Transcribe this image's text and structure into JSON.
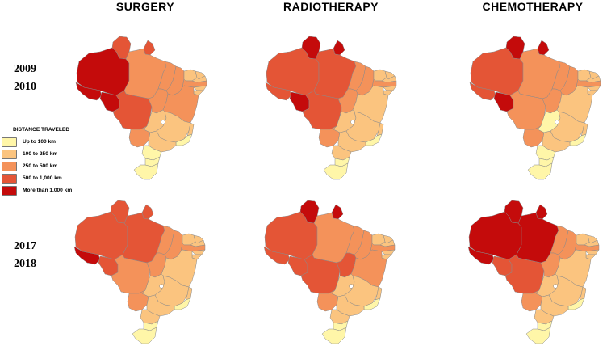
{
  "colors": {
    "up_to_100": "#FFF6A8",
    "100_to_250": "#FBC47F",
    "250_to_500": "#F4925A",
    "500_to_1000": "#E45536",
    "more_than_1000": "#C40B0B"
  },
  "columns": [
    "SURGERY",
    "RADIOTHERAPY",
    "CHEMOTHERAPY"
  ],
  "periods": [
    {
      "top": "2009",
      "bottom": "2010"
    },
    {
      "top": "2017",
      "bottom": "2018"
    }
  ],
  "legend": {
    "title": "DISTANCE TRAVELED",
    "items": [
      {
        "label": "Up to 100 km",
        "class": "up_to_100"
      },
      {
        "label": "100 to 250 km",
        "class": "100_to_250"
      },
      {
        "label": "250 to 500 km",
        "class": "250_to_500"
      },
      {
        "label": "500 to 1,000 km",
        "class": "500_to_1000"
      },
      {
        "label": "More than 1,000 km",
        "class": "more_than_1000"
      }
    ]
  },
  "maps": [
    {
      "period": "2009/2010",
      "treatment": "SURGERY",
      "states": {
        "AC": "more_than_1000",
        "AM": "more_than_1000",
        "RR": "500_to_1000",
        "AP": "500_to_1000",
        "PA": "250_to_500",
        "RO": "more_than_1000",
        "MT": "500_to_1000",
        "TO": "250_to_500",
        "MA": "250_to_500",
        "PI": "250_to_500",
        "CE": "100_to_250",
        "RN": "100_to_250",
        "PB": "100_to_250",
        "PE": "250_to_500",
        "AL": "100_to_250",
        "SE": "100_to_250",
        "BA": "250_to_500",
        "MS": "250_to_500",
        "GO": "100_to_250",
        "DF": "up_to_100",
        "MG": "100_to_250",
        "ES": "100_to_250",
        "RJ": "up_to_100",
        "SP": "100_to_250",
        "PR": "up_to_100",
        "SC": "up_to_100",
        "RS": "up_to_100"
      }
    },
    {
      "period": "2009/2010",
      "treatment": "RADIOTHERAPY",
      "states": {
        "AC": "500_to_1000",
        "AM": "500_to_1000",
        "RR": "more_than_1000",
        "AP": "more_than_1000",
        "PA": "500_to_1000",
        "RO": "more_than_1000",
        "MT": "500_to_1000",
        "TO": "250_to_500",
        "MA": "250_to_500",
        "PI": "250_to_500",
        "CE": "100_to_250",
        "RN": "100_to_250",
        "PB": "100_to_250",
        "PE": "250_to_500",
        "AL": "100_to_250",
        "SE": "100_to_250",
        "BA": "100_to_250",
        "MS": "250_to_500",
        "GO": "100_to_250",
        "DF": "up_to_100",
        "MG": "100_to_250",
        "ES": "100_to_250",
        "RJ": "up_to_100",
        "SP": "100_to_250",
        "PR": "100_to_250",
        "SC": "up_to_100",
        "RS": "up_to_100"
      }
    },
    {
      "period": "2009/2010",
      "treatment": "CHEMOTHERAPY",
      "states": {
        "AC": "500_to_1000",
        "AM": "500_to_1000",
        "RR": "more_than_1000",
        "AP": "more_than_1000",
        "PA": "250_to_500",
        "RO": "more_than_1000",
        "MT": "250_to_500",
        "TO": "250_to_500",
        "MA": "250_to_500",
        "PI": "250_to_500",
        "CE": "100_to_250",
        "RN": "100_to_250",
        "PB": "100_to_250",
        "PE": "250_to_500",
        "AL": "100_to_250",
        "SE": "100_to_250",
        "BA": "100_to_250",
        "MS": "250_to_500",
        "GO": "up_to_100",
        "DF": "up_to_100",
        "MG": "100_to_250",
        "ES": "100_to_250",
        "RJ": "up_to_100",
        "SP": "100_to_250",
        "PR": "up_to_100",
        "SC": "up_to_100",
        "RS": "up_to_100"
      }
    },
    {
      "period": "2017/2018",
      "treatment": "SURGERY",
      "states": {
        "AC": "more_than_1000",
        "AM": "500_to_1000",
        "RR": "500_to_1000",
        "AP": "500_to_1000",
        "PA": "500_to_1000",
        "RO": "500_to_1000",
        "MT": "250_to_500",
        "TO": "250_to_500",
        "MA": "250_to_500",
        "PI": "250_to_500",
        "CE": "100_to_250",
        "RN": "100_to_250",
        "PB": "100_to_250",
        "PE": "250_to_500",
        "AL": "100_to_250",
        "SE": "100_to_250",
        "BA": "100_to_250",
        "MS": "250_to_500",
        "GO": "100_to_250",
        "DF": "up_to_100",
        "MG": "100_to_250",
        "ES": "100_to_250",
        "RJ": "up_to_100",
        "SP": "100_to_250",
        "PR": "100_to_250",
        "SC": "up_to_100",
        "RS": "up_to_100"
      }
    },
    {
      "period": "2017/2018",
      "treatment": "RADIOTHERAPY",
      "states": {
        "AC": "500_to_1000",
        "AM": "500_to_1000",
        "RR": "more_than_1000",
        "AP": "more_than_1000",
        "PA": "250_to_500",
        "RO": "500_to_1000",
        "MT": "500_to_1000",
        "TO": "500_to_1000",
        "MA": "250_to_500",
        "PI": "250_to_500",
        "CE": "100_to_250",
        "RN": "100_to_250",
        "PB": "100_to_250",
        "PE": "250_to_500",
        "AL": "100_to_250",
        "SE": "100_to_250",
        "BA": "250_to_500",
        "MS": "250_to_500",
        "GO": "100_to_250",
        "DF": "up_to_100",
        "MG": "100_to_250",
        "ES": "100_to_250",
        "RJ": "up_to_100",
        "SP": "100_to_250",
        "PR": "100_to_250",
        "SC": "up_to_100",
        "RS": "up_to_100"
      }
    },
    {
      "period": "2017/2018",
      "treatment": "CHEMOTHERAPY",
      "states": {
        "AC": "more_than_1000",
        "AM": "more_than_1000",
        "RR": "more_than_1000",
        "AP": "more_than_1000",
        "PA": "more_than_1000",
        "RO": "500_to_1000",
        "MT": "500_to_1000",
        "TO": "250_to_500",
        "MA": "250_to_500",
        "PI": "250_to_500",
        "CE": "100_to_250",
        "RN": "100_to_250",
        "PB": "100_to_250",
        "PE": "250_to_500",
        "AL": "100_to_250",
        "SE": "100_to_250",
        "BA": "100_to_250",
        "MS": "250_to_500",
        "GO": "100_to_250",
        "DF": "up_to_100",
        "MG": "100_to_250",
        "ES": "100_to_250",
        "RJ": "up_to_100",
        "SP": "100_to_250",
        "PR": "100_to_250",
        "SC": "up_to_100",
        "RS": "up_to_100"
      }
    }
  ]
}
